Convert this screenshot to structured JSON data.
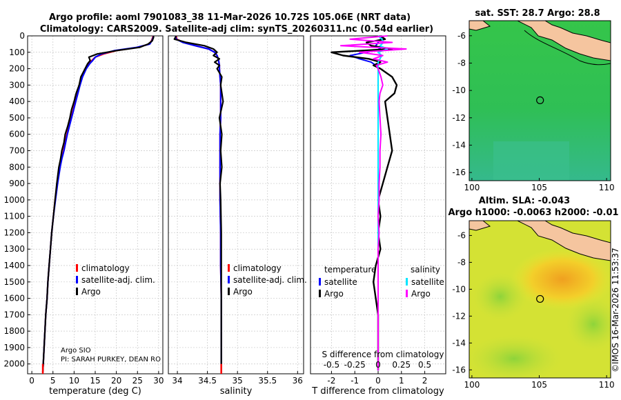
{
  "title_line1": "Argo profile: aoml 7901083_38 11-Mar-2026 10.72S 105.06E (NRT data)",
  "title_line2": "Climatology: CARS2009. Satellite-adj clim: synTS_20260311.nc (0.54d earlier)",
  "credit": "©IMOS 16-Mar-2026 11:53:37",
  "colors": {
    "climatology": "#ff0000",
    "satellite": "#0000ff",
    "argo": "#000000",
    "sat_sal": "#00e5ff",
    "argo_sal": "#ff00ff",
    "land": "#f5c59f"
  },
  "chart_data": [
    {
      "type": "line",
      "name": "temperature-profile",
      "xlabel": "temperature (deg C)",
      "ylabel": "",
      "xlim": [
        -1,
        31
      ],
      "ylim": [
        2060,
        0
      ],
      "xticks": [
        0,
        5,
        10,
        15,
        20,
        25,
        30
      ],
      "yticks": [
        0,
        100,
        200,
        300,
        400,
        500,
        600,
        700,
        800,
        900,
        1000,
        1100,
        1200,
        1300,
        1400,
        1500,
        1600,
        1700,
        1800,
        1900,
        2000
      ],
      "depth": [
        0,
        10,
        30,
        50,
        70,
        90,
        110,
        130,
        150,
        170,
        200,
        250,
        300,
        350,
        400,
        450,
        500,
        550,
        600,
        650,
        700,
        750,
        800,
        900,
        1000,
        1100,
        1200,
        1300,
        1400,
        1500,
        1600,
        1700,
        1800,
        1900,
        2000,
        2050
      ],
      "series": [
        {
          "name": "climatology",
          "values": [
            28.7,
            28.6,
            28.3,
            27.8,
            25,
            20,
            17,
            15,
            14.2,
            13.5,
            12.8,
            11.9,
            11.3,
            10.8,
            10.3,
            9.8,
            9.3,
            8.8,
            8.3,
            7.9,
            7.5,
            7.0,
            6.6,
            6.0,
            5.5,
            5.1,
            4.7,
            4.4,
            4.1,
            3.8,
            3.6,
            3.3,
            3.1,
            2.9,
            2.7,
            2.6
          ]
        },
        {
          "name": "satellite-adj. clim.",
          "values": [
            28.8,
            28.7,
            28.4,
            27.9,
            24.8,
            19.5,
            16.5,
            15,
            14.4,
            13.7,
            12.9,
            12.0,
            11.4,
            10.9,
            10.4,
            9.9,
            9.4,
            8.9,
            8.4,
            8.0,
            7.6,
            7.1,
            6.7,
            6.1,
            5.6,
            5.1,
            4.7,
            4.4,
            4.1,
            3.8,
            3.6,
            3.3,
            3.1,
            2.9,
            2.7,
            2.6
          ]
        },
        {
          "name": "Argo",
          "values": [
            28.8,
            28.8,
            28.5,
            27.5,
            25.5,
            20,
            15.5,
            13.5,
            13.8,
            13.2,
            12.6,
            11.6,
            11.2,
            10.5,
            10.0,
            9.4,
            9.0,
            8.5,
            7.9,
            7.6,
            7.1,
            6.8,
            6.4,
            5.9,
            5.5,
            5.1,
            4.7,
            4.4,
            4.1,
            3.8,
            3.6,
            3.3,
            3.1,
            2.9,
            2.7,
            2.6
          ]
        }
      ],
      "legend": [
        "climatology",
        "satellite-adj. clim.",
        "Argo"
      ],
      "annotation_lines": [
        "Argo SIO",
        "PI: SARAH PURKEY, DEAN RO"
      ]
    },
    {
      "type": "line",
      "name": "salinity-profile",
      "xlabel": "salinity",
      "ylabel": "",
      "xlim": [
        33.85,
        36.1
      ],
      "ylim": [
        2060,
        0
      ],
      "xticks": [
        34,
        34.5,
        35,
        35.5,
        36
      ],
      "depth": [
        0,
        20,
        40,
        60,
        80,
        100,
        120,
        140,
        160,
        180,
        200,
        250,
        300,
        400,
        500,
        600,
        700,
        800,
        900,
        1000,
        1200,
        1300,
        1400,
        1600,
        1800,
        2000,
        2050
      ],
      "series": [
        {
          "name": "climatology",
          "values": [
            33.98,
            33.99,
            34.1,
            34.3,
            34.52,
            34.62,
            34.66,
            34.68,
            34.69,
            34.7,
            34.7,
            34.71,
            34.72,
            34.72,
            34.72,
            34.71,
            34.71,
            34.71,
            34.71,
            34.71,
            34.72,
            34.72,
            34.72,
            34.73,
            34.73,
            34.73,
            34.73
          ]
        },
        {
          "name": "satellite-adj. clim.",
          "values": [
            33.97,
            33.98,
            34.09,
            34.3,
            34.52,
            34.62,
            34.66,
            34.68,
            34.69,
            34.7,
            34.7,
            34.71,
            34.72,
            34.72,
            34.72,
            34.71,
            34.71,
            34.71,
            34.71,
            34.71,
            34.72,
            34.72,
            34.72,
            34.73,
            34.73,
            34.73,
            34.73
          ]
        },
        {
          "name": "Argo",
          "values": [
            33.98,
            33.95,
            34.15,
            34.45,
            34.6,
            34.66,
            34.6,
            34.7,
            34.62,
            34.7,
            34.66,
            34.74,
            34.72,
            34.76,
            34.7,
            34.74,
            34.72,
            34.74,
            34.71,
            34.72,
            34.73,
            34.73,
            34.73,
            34.73,
            34.73,
            34.73,
            34.73
          ]
        }
      ],
      "legend": [
        "climatology",
        "satellite-adj. clim.",
        "Argo"
      ]
    },
    {
      "type": "line",
      "name": "difference-profile",
      "xlabel": "T difference from climatology",
      "ylabel": "",
      "xlim": [
        -2.9,
        2.9
      ],
      "ylim": [
        2060,
        0
      ],
      "xticks": [
        -2,
        -1,
        0,
        1,
        2
      ],
      "top_xlabel": "S difference from climatology",
      "top_xticklabels": [
        "-0.5",
        "-0.25",
        "0",
        "0.25",
        "0.5"
      ],
      "depth": [
        0,
        20,
        40,
        60,
        80,
        100,
        120,
        140,
        160,
        180,
        200,
        250,
        300,
        350,
        400,
        500,
        600,
        700,
        800,
        900,
        1000,
        1100,
        1200,
        1300,
        1400,
        1500,
        1600,
        1700,
        1800,
        1900,
        2000,
        2040
      ],
      "series": [
        {
          "name": "temperature satellite",
          "values": [
            0.2,
            0.1,
            0.0,
            -0.1,
            0.1,
            -0.5,
            -1.2,
            -0.8,
            -0.3,
            -0.1,
            0.0,
            0.0,
            0.0,
            0.0,
            0.0,
            0.0,
            0.0,
            0.0,
            0.0,
            0.0,
            0.0,
            0.0,
            0.0,
            0.0,
            0.0,
            0.0,
            0.0,
            0.0,
            0.0,
            0.0,
            0.0,
            0.0
          ]
        },
        {
          "name": "temperature Argo",
          "values": [
            0.1,
            0.3,
            -0.5,
            -0.3,
            0.6,
            -2.0,
            -1.5,
            -0.4,
            0.1,
            -0.2,
            0.1,
            0.6,
            0.8,
            0.7,
            0.3,
            0.4,
            0.5,
            0.6,
            0.4,
            0.2,
            0.0,
            0.1,
            0.0,
            0.1,
            -0.1,
            -0.2,
            -0.1,
            0.0,
            0.0,
            0.0,
            0.0,
            0.0
          ]
        },
        {
          "name": "salinity satellite",
          "values": [
            0.0,
            0.04,
            0.06,
            0.02,
            0.1,
            0.0,
            0.04,
            0.02,
            0.0,
            0.0,
            0.0,
            0.0,
            0.0,
            0.0,
            0.0,
            0.0,
            0.0,
            0.0,
            0.0,
            0.0,
            0.0,
            0.0,
            0.0,
            0.0,
            0.0,
            0.0,
            0.0,
            0.0,
            0.0,
            0.0,
            0.0,
            0.0
          ]
        },
        {
          "name": "salinity Argo",
          "values": [
            0.1,
            -0.3,
            0.15,
            -0.4,
            0.3,
            -0.2,
            0.05,
            -0.05,
            0.1,
            -0.02,
            0.0,
            0.03,
            0.05,
            0.02,
            0.01,
            0.02,
            0.03,
            0.02,
            0.02,
            0.01,
            0.01,
            0.0,
            0.01,
            0.0,
            0.0,
            0.0,
            0.0,
            0.0,
            0.0,
            0.0,
            0.0,
            0.0
          ]
        }
      ],
      "legend_headers": [
        "temperature",
        "salinity"
      ],
      "legend": [
        "satellite",
        "Argo",
        "satellite",
        "Argo"
      ]
    },
    {
      "type": "heatmap",
      "name": "sst-map",
      "title": "sat. SST: 28.7 Argo: 28.8",
      "xlim": [
        99.8,
        110.3
      ],
      "ylim": [
        -16.6,
        -4.9
      ],
      "xticks": [
        100,
        105,
        110
      ],
      "yticks": [
        -6,
        -8,
        -10,
        -12,
        -14,
        -16
      ],
      "float_position": [
        105.06,
        -10.72
      ]
    },
    {
      "type": "heatmap",
      "name": "sla-map",
      "title": "Altim. SLA: -0.043",
      "subtitle": "Argo h1000: -0.0063 h2000: -0.01",
      "xlim": [
        99.8,
        110.3
      ],
      "ylim": [
        -16.6,
        -4.9
      ],
      "xticks": [
        100,
        105,
        110
      ],
      "yticks": [
        -6,
        -8,
        -10,
        -12,
        -14,
        -16
      ],
      "float_position": [
        105.06,
        -10.72
      ]
    }
  ]
}
